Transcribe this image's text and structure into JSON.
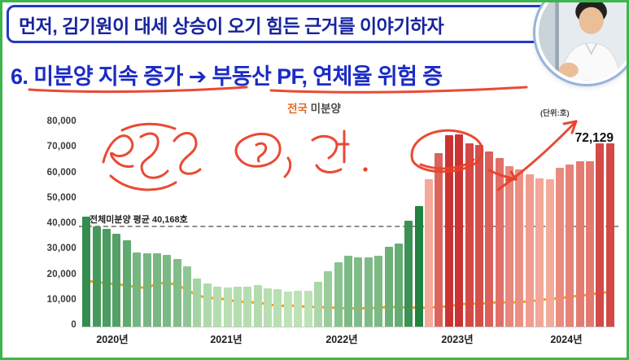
{
  "colors": {
    "frame_green": "#3cb54c",
    "banner_border": "#2438c8",
    "banner_text": "#18249e",
    "heading_blue": "#1b2bc4",
    "ink_red": "#e8402a",
    "title_orange": "#e4681e"
  },
  "banner": {
    "text": "먼저, 김기원이 대세 상승이 오기 힘든 근거를 이야기하자"
  },
  "heading": {
    "text": "6. 미분양 지속 증가 ➔ 부동산 PF, 연체율 위험 증"
  },
  "chart_data": {
    "type": "bar",
    "title": {
      "part1": "전국",
      "part2": " 미분양"
    },
    "unit_label": "(단위:호)",
    "peak_label": "72,129",
    "average_line": {
      "label": "전체미분양 평균 40,168호",
      "value": 40168
    },
    "ylim": [
      0,
      80000
    ],
    "y_tick_step": 10000,
    "y_tick_labels": [
      "80,000",
      "70,000",
      "60,000",
      "50,000",
      "40,000",
      "30,000",
      "20,000",
      "10,000",
      "0"
    ],
    "x_year_labels": [
      "2020년",
      "2021년",
      "2022년",
      "2023년",
      "2024년"
    ],
    "start_month": "2020-01",
    "frequency": "monthly",
    "legend": "off",
    "grid": "off",
    "bars": {
      "values": [
        43268,
        39456,
        38304,
        36629,
        33894,
        29262,
        28883,
        28831,
        28309,
        26703,
        23620,
        19005,
        17130,
        15786,
        15270,
        15798,
        15660,
        16289,
        15198,
        14864,
        13842,
        14075,
        14094,
        17710,
        21727,
        25254,
        27974,
        27180,
        27375,
        27910,
        31284,
        32722,
        41604,
        47217,
        58027,
        68148,
        75359,
        75438,
        72104,
        71365,
        68865,
        66388,
        63087,
        61811,
        59806,
        58299,
        57925,
        62489,
        63755,
        64874,
        64964,
        71997,
        72129
      ]
    },
    "line": {
      "values": [
        17470,
        17354,
        16649,
        16372,
        15788,
        15259,
        14856,
        16628,
        16883,
        16084,
        14060,
        12006,
        10988,
        10779,
        10307,
        9440,
        9375,
        9008,
        8558,
        7710,
        7963,
        7740,
        7388,
        7449,
        7165,
        7133,
        6752,
        6978,
        6830,
        7130,
        7388,
        7330,
        7189,
        7077,
        7110,
        7518,
        7546,
        8554,
        8650,
        8716,
        8892,
        9399,
        9041,
        9392,
        9513,
        10224,
        10465,
        10857,
        11363,
        11867,
        12194,
        12968,
        13230
      ],
      "color": "#f59f1e"
    },
    "colors": {
      "green_low": "#c6e8bd",
      "green_high": "#157a36",
      "red_low": "#f9b7a5",
      "red_high": "#c92f2f"
    },
    "red_start_index": 34
  },
  "annotations": {
    "ink_color": "#e8402a"
  }
}
